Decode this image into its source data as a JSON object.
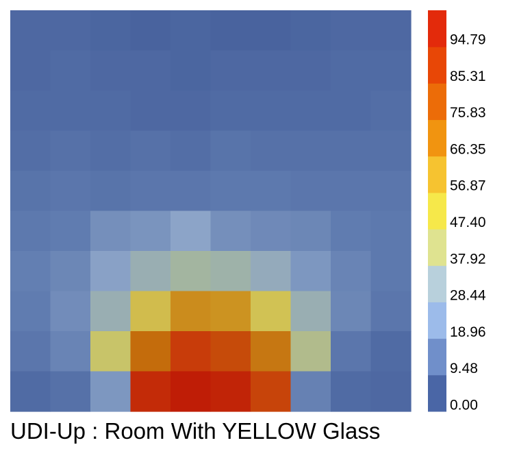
{
  "chart_data": {
    "type": "heatmap",
    "title": "UDI-Up : Room With YELLOW Glass",
    "rows": 10,
    "cols": 10,
    "colorbar": {
      "ticks": [
        "0.00",
        "9.48",
        "18.96",
        "28.44",
        "37.92",
        "47.40",
        "56.87",
        "66.35",
        "75.83",
        "85.31",
        "94.79"
      ],
      "colors": [
        "#4a66a6",
        "#708fca",
        "#9cbbea",
        "#b8d0dc",
        "#dfe390",
        "#f6e84a",
        "#f6c330",
        "#f19410",
        "#ec6c08",
        "#e84706",
        "#e32a0b"
      ]
    },
    "values": [
      [
        3,
        3,
        2,
        1,
        2,
        1,
        1,
        2,
        3,
        3
      ],
      [
        3,
        4,
        3,
        3,
        2,
        3,
        3,
        3,
        4,
        4
      ],
      [
        4,
        4,
        4,
        3,
        3,
        4,
        4,
        4,
        4,
        5
      ],
      [
        5,
        6,
        5,
        6,
        5,
        7,
        6,
        6,
        6,
        6
      ],
      [
        7,
        8,
        7,
        8,
        8,
        9,
        9,
        8,
        8,
        8
      ],
      [
        9,
        10,
        17,
        19,
        25,
        17,
        15,
        14,
        10,
        9
      ],
      [
        11,
        14,
        24,
        30,
        34,
        32,
        28,
        20,
        13,
        9
      ],
      [
        10,
        16,
        30,
        52,
        68,
        66,
        50,
        30,
        14,
        8
      ],
      [
        8,
        13,
        45,
        77,
        90,
        86,
        74,
        38,
        8,
        4
      ],
      [
        4,
        6,
        20,
        95,
        99,
        97,
        88,
        12,
        4,
        3
      ]
    ]
  }
}
